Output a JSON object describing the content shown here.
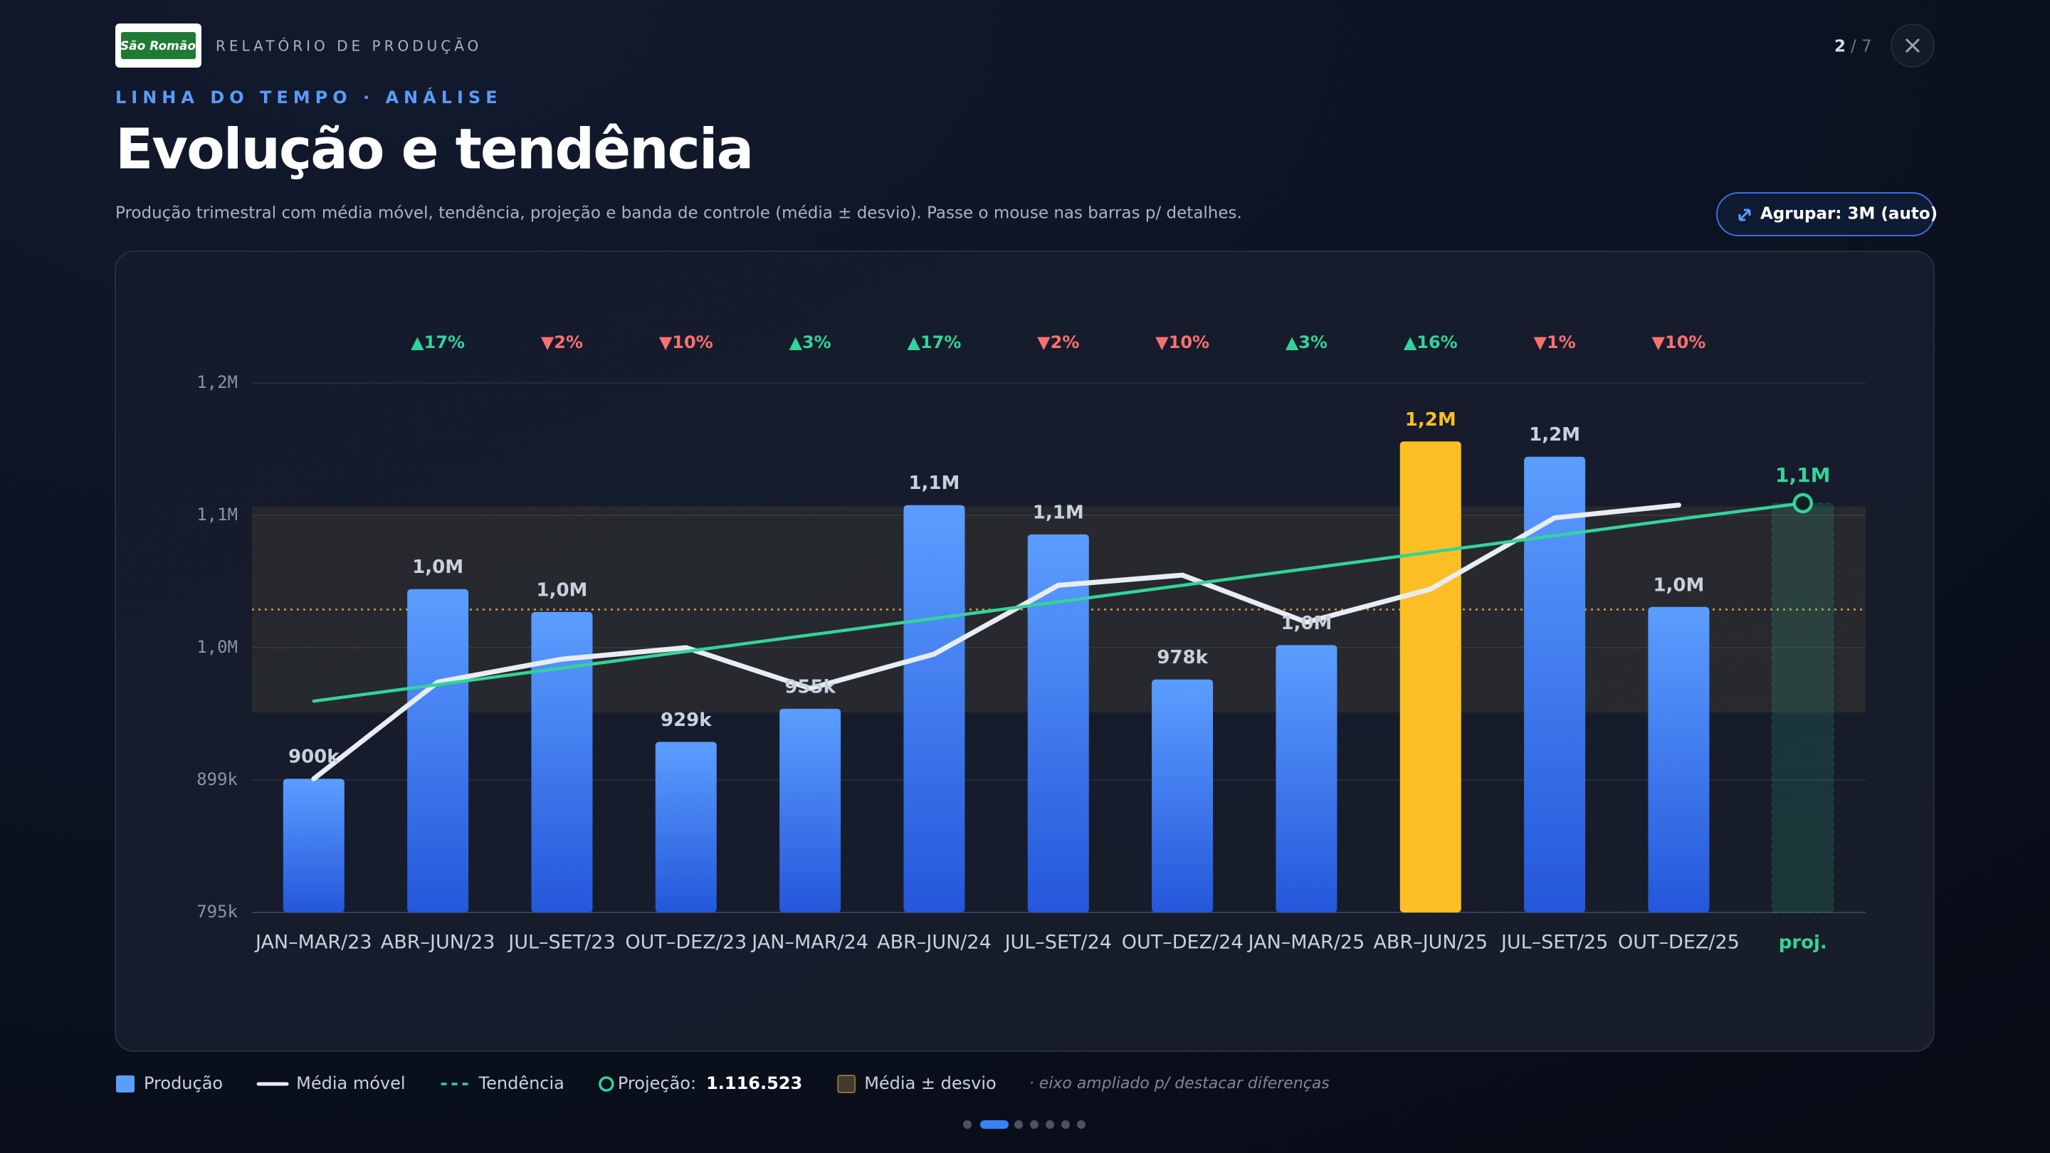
{
  "header": {
    "logo_text": "São Romão",
    "report_title": "RELATÓRIO DE PRODUÇÃO",
    "page_current": "2",
    "page_total": "/ 7",
    "eyebrow": "LINHA DO TEMPO · ANÁLISE",
    "title": "Evolução e tendência",
    "subtitle": "Produção trimestral com média móvel, tendência, projeção e banda de controle (média ± desvio). Passe o mouse nas barras p/ detalhes.",
    "group_button": "Agrupar: 3M (auto)"
  },
  "chart_data": {
    "type": "bar",
    "categories": [
      "JAN–MAR/23",
      "ABR–JUN/23",
      "JUL–SET/23",
      "OUT–DEZ/23",
      "JAN–MAR/24",
      "ABR–JUN/24",
      "JUL–SET/24",
      "OUT–DEZ/24",
      "JAN–MAR/25",
      "ABR–JUN/25",
      "JUL–SET/25",
      "OUT–DEZ/25",
      "proj."
    ],
    "series": [
      {
        "name": "Produção",
        "type": "bar",
        "color": "#5b9dff",
        "values": [
          900000,
          1049000,
          1031000,
          929000,
          955000,
          1115000,
          1092000,
          978000,
          1005000,
          1165000,
          1153000,
          1035000,
          null
        ],
        "value_labels": [
          "900k",
          "1,0M",
          "1,0M",
          "929k",
          "955k",
          "1,1M",
          "1,1M",
          "978k",
          "1,0M",
          "1,2M",
          "1,2M",
          "1,0M",
          null
        ],
        "bar_colors": [
          "#5b9dff",
          "#5b9dff",
          "#5b9dff",
          "#5b9dff",
          "#5b9dff",
          "#5b9dff",
          "#5b9dff",
          "#5b9dff",
          "#5b9dff",
          "#fbbf24",
          "#5b9dff",
          "#5b9dff",
          null
        ]
      },
      {
        "name": "Média móvel",
        "type": "line",
        "color": "#e8ecf3",
        "values": [
          900000,
          976000,
          994000,
          1003000,
          971000,
          998000,
          1052000,
          1060000,
          1023000,
          1049000,
          1105000,
          1115000,
          null
        ]
      },
      {
        "name": "Tendência",
        "type": "trend",
        "color": "#34d399",
        "values": [
          961000,
          974000,
          987000,
          1000000,
          1013000,
          1026000,
          1039000,
          1052000,
          1065000,
          1078000,
          1091000,
          1104000,
          1116523
        ]
      },
      {
        "name": "Projeção:",
        "type": "projection",
        "color": "#34d399",
        "values": [
          null,
          null,
          null,
          null,
          null,
          null,
          null,
          null,
          null,
          null,
          null,
          null,
          1116523
        ],
        "value_labels": [
          null,
          null,
          null,
          null,
          null,
          null,
          null,
          null,
          null,
          null,
          null,
          null,
          "1,1M"
        ],
        "legend_label": "1.116.523"
      }
    ],
    "changes": [
      null,
      {
        "label": "▲17%",
        "color": "#34d399"
      },
      {
        "label": "▼2%",
        "color": "#f87171"
      },
      {
        "label": "▼10%",
        "color": "#f87171"
      },
      {
        "label": "▲3%",
        "color": "#34d399"
      },
      {
        "label": "▲17%",
        "color": "#34d399"
      },
      {
        "label": "▼2%",
        "color": "#f87171"
      },
      {
        "label": "▼10%",
        "color": "#f87171"
      },
      {
        "label": "▲3%",
        "color": "#34d399"
      },
      {
        "label": "▲16%",
        "color": "#34d399"
      },
      {
        "label": "▼1%",
        "color": "#f87171"
      },
      {
        "label": "▼10%",
        "color": "#f87171"
      },
      null
    ],
    "band": {
      "name": "Média ± desvio",
      "mean": 1033000,
      "lower": 952000,
      "upper": 1114000,
      "color": "#c8a050"
    },
    "ylim": [
      795000,
      1211000
    ],
    "yticks": [
      {
        "value": 795000,
        "label": "795k"
      },
      {
        "value": 899000,
        "label": "899k"
      },
      {
        "value": 1003000,
        "label": "1,0M"
      },
      {
        "value": 1107000,
        "label": "1,1M"
      },
      {
        "value": 1211000,
        "label": "1,2M"
      }
    ],
    "grid": true,
    "note": "· eixo ampliado p/ destacar diferenças"
  }
}
